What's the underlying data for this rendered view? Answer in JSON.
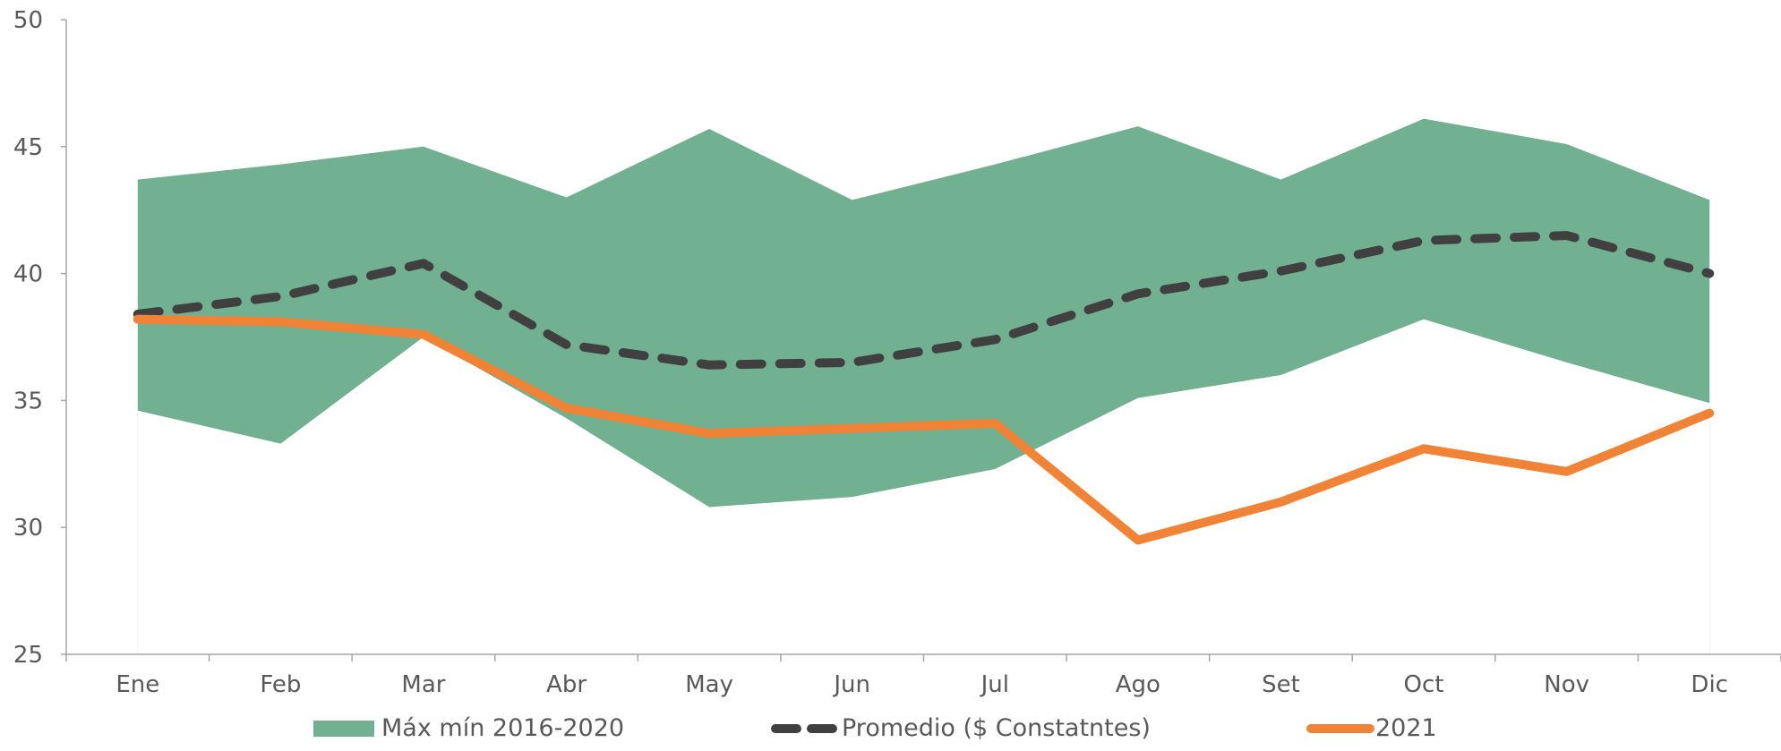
{
  "chart_data": {
    "type": "line",
    "categories": [
      "Ene",
      "Feb",
      "Mar",
      "Abr",
      "May",
      "Jun",
      "Jul",
      "Ago",
      "Set",
      "Oct",
      "Nov",
      "Dic"
    ],
    "yticks": [
      "25",
      "30",
      "35",
      "40",
      "45",
      "50"
    ],
    "ylim": [
      25,
      50
    ],
    "grid": false,
    "legend_position": "bottom",
    "band": {
      "name": "Máx mín 2016-2020",
      "color": "#72B092",
      "max": [
        43.7,
        44.3,
        45.0,
        43.0,
        45.7,
        42.9,
        44.3,
        45.8,
        43.7,
        46.1,
        45.1,
        42.9
      ],
      "min": [
        34.6,
        33.3,
        37.5,
        34.3,
        30.8,
        31.2,
        32.3,
        35.1,
        36.0,
        38.2,
        36.5,
        34.9
      ]
    },
    "series": [
      {
        "name": "Promedio ($ Constatntes)",
        "color": "#404040",
        "dash": true,
        "values": [
          38.4,
          39.1,
          40.4,
          37.2,
          36.4,
          36.5,
          37.4,
          39.2,
          40.1,
          41.3,
          41.5,
          40.0
        ]
      },
      {
        "name": "2021",
        "color": "#F08336",
        "dash": false,
        "values": [
          38.2,
          38.1,
          37.6,
          34.7,
          33.7,
          33.9,
          34.1,
          29.5,
          31.0,
          33.1,
          32.2,
          34.5
        ]
      }
    ]
  }
}
